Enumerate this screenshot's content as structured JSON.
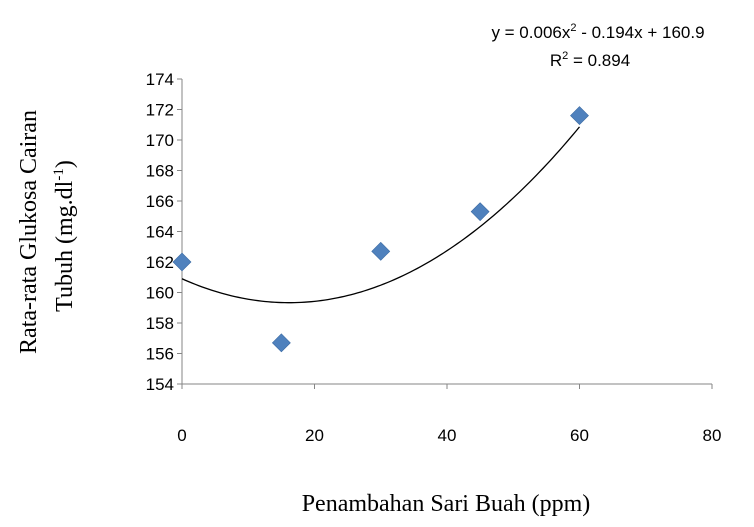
{
  "chart_data": {
    "type": "scatter",
    "xlabel": "Penambahan Sari Buah (ppm)",
    "ylabel_line1": "Rata-rata Glukosa Cairan",
    "ylabel_line2_prefix": "Tubuh (mg.dl",
    "ylabel_line2_sup": "-1",
    "ylabel_line2_suffix": ")",
    "xlim": [
      0,
      80
    ],
    "ylim": [
      154,
      174
    ],
    "x_ticks": [
      "0",
      "20",
      "40",
      "60",
      "80"
    ],
    "y_ticks": [
      "154",
      "156",
      "158",
      "160",
      "162",
      "164",
      "166",
      "168",
      "170",
      "172",
      "174"
    ],
    "grid": false,
    "series": [
      {
        "marker": "diamond",
        "color": "#4f81bd",
        "points": [
          {
            "x": 0,
            "y": 162.0
          },
          {
            "x": 15,
            "y": 156.7
          },
          {
            "x": 30,
            "y": 162.7
          },
          {
            "x": 45,
            "y": 165.3
          },
          {
            "x": 60,
            "y": 171.6
          }
        ]
      }
    ],
    "trendline": {
      "type": "polynomial",
      "coefficients": [
        0.006,
        -0.194,
        160.9
      ],
      "equation_prefix": "y = 0.006x",
      "equation_mid": " - 0.194x + 160.9",
      "r2_prefix": "R",
      "r2_suffix": " = 0.894",
      "x_range": [
        0,
        60
      ],
      "color": "#000000"
    }
  }
}
